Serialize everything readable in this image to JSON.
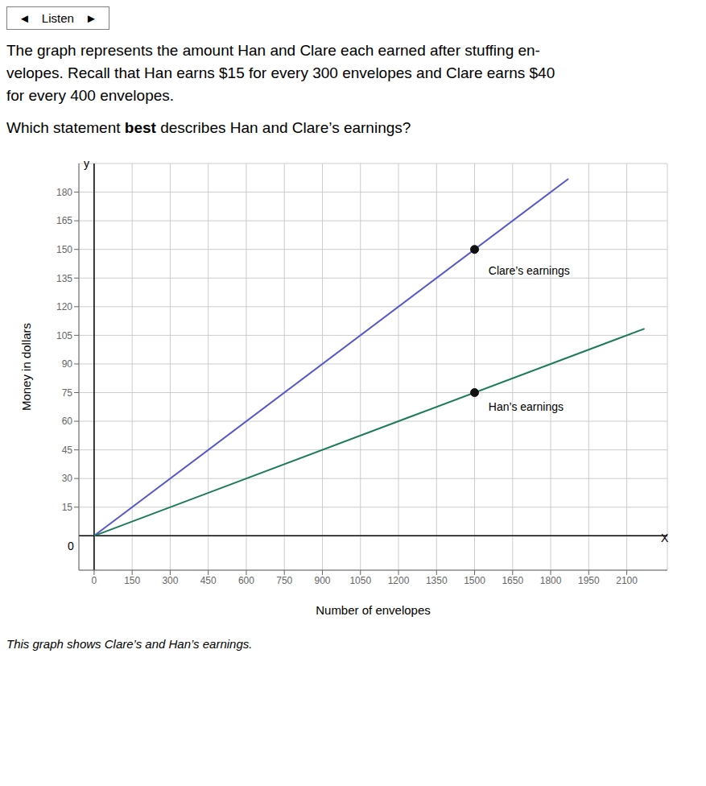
{
  "chart_data": {
    "type": "line",
    "button": [
      "◄",
      "Listen",
      "►"
    ],
    "subtitle": [
      "The graph represents the amount Han and Clare each earned after stuffing en-",
      "velopes. Recall that Han earns $15 for every 300 envelopes and Clare earns $40",
      "for every 400 envelopes."
    ],
    "title": [
      "Which statement ",
      "best",
      " describes Han and Clare’s earnings?"
    ],
    "caption": "This graph shows Clare’s and Han’s earnings.",
    "x_label": "Number of envelopes",
    "y_label": "Money in dollars",
    "xlim": [
      -60,
      2260
    ],
    "ylim": [
      -18,
      195
    ],
    "xticks": [
      0,
      150,
      300,
      450,
      600,
      750,
      900,
      1050,
      1200,
      1350,
      1500,
      1650,
      1800,
      1950,
      2100
    ],
    "yticks": [
      15,
      30,
      45,
      60,
      75,
      90,
      105,
      120,
      135,
      150,
      165,
      180
    ],
    "grid": true,
    "series": [
      {
        "type": "line",
        "color": "#5555cc",
        "x": [
          0,
          1870
        ],
        "values": [
          0,
          187
        ]
      },
      {
        "type": "line",
        "color": "#1a7a5a",
        "x": [
          0,
          2170
        ],
        "values": [
          0,
          108.5
        ]
      },
      {
        "type": "scatter",
        "color": "#111111",
        "x": [
          1500,
          1500
        ],
        "values": [
          150,
          75
        ]
      }
    ],
    "annotations": [
      {
        "text": "Clare’s earnings",
        "x": 1555,
        "y": 141
      },
      {
        "text": "Han’s earnings",
        "x": 1555,
        "y": 70
      },
      {
        "text": "y",
        "x": -30,
        "y": 193
      },
      {
        "text": "X",
        "x": 2235,
        "y": -1
      },
      {
        "text": "0",
        "x": -80,
        "y": -3
      }
    ]
  }
}
